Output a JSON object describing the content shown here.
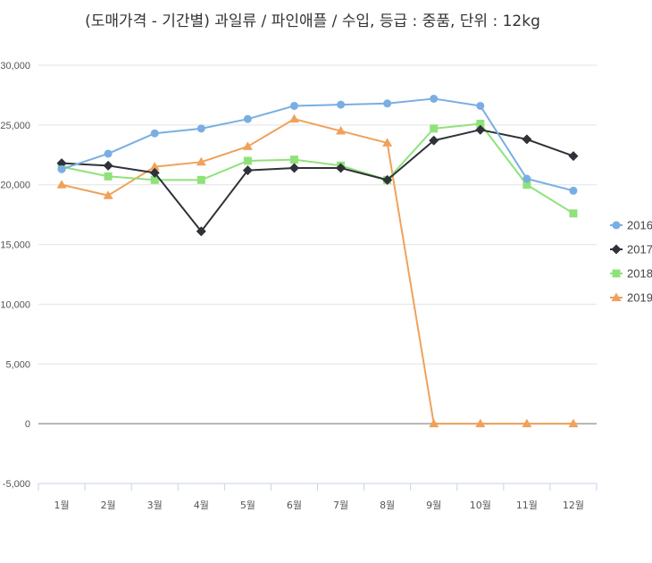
{
  "chart_data": {
    "type": "line",
    "title": "(도매가격 - 기간별) 과일류 / 파인애플 / 수입, 등급 : 중품, 단위 : 12kg",
    "categories": [
      "1월",
      "2월",
      "3월",
      "4월",
      "5월",
      "6월",
      "7월",
      "8월",
      "9월",
      "10월",
      "11월",
      "12월"
    ],
    "yticks": [
      "30,000",
      "25,000",
      "20,000",
      "15,000",
      "10,000",
      "5,000",
      "0",
      "-5,000"
    ],
    "ylim": [
      -5000,
      30000
    ],
    "grid": true,
    "legend_position": "right",
    "series": [
      {
        "name": "2016",
        "color": "#7aaee2",
        "marker": "circle",
        "values": [
          21300,
          22600,
          24300,
          24700,
          25500,
          26600,
          26700,
          26800,
          27200,
          26600,
          20500,
          19500
        ]
      },
      {
        "name": "2017",
        "color": "#2f3238",
        "marker": "diamond",
        "values": [
          21800,
          21600,
          21000,
          16100,
          21200,
          21400,
          21400,
          20400,
          23700,
          24600,
          23800,
          22400
        ]
      },
      {
        "name": "2018",
        "color": "#8fe27a",
        "marker": "square",
        "values": [
          21500,
          20700,
          20400,
          20400,
          22000,
          22100,
          21600,
          20400,
          24700,
          25100,
          20000,
          17600
        ]
      },
      {
        "name": "2019",
        "color": "#f0a15a",
        "marker": "triangle",
        "values": [
          20000,
          19100,
          21500,
          21900,
          23200,
          25500,
          24500,
          23500,
          0,
          0,
          0,
          0
        ]
      }
    ]
  }
}
